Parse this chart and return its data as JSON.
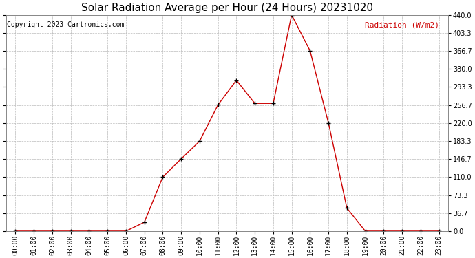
{
  "title": "Solar Radiation Average per Hour (24 Hours) 20231020",
  "copyright_text": "Copyright 2023 Cartronics.com",
  "ylabel": "Radiation (W/m2)",
  "hours": [
    0,
    1,
    2,
    3,
    4,
    5,
    6,
    7,
    8,
    9,
    10,
    11,
    12,
    13,
    14,
    15,
    16,
    17,
    18,
    19,
    20,
    21,
    22,
    23
  ],
  "values": [
    0,
    0,
    0,
    0,
    0,
    0,
    0,
    18,
    110,
    147,
    183,
    257,
    307,
    260,
    260,
    440,
    367,
    220,
    47,
    0,
    0,
    0,
    0,
    0
  ],
  "line_color": "#cc0000",
  "marker_color": "#000000",
  "grid_color": "#bbbbbb",
  "background_color": "#ffffff",
  "title_fontsize": 11,
  "copyright_fontsize": 7,
  "label_fontsize": 8,
  "tick_fontsize": 7,
  "ylim": [
    0,
    440
  ],
  "yticks": [
    0.0,
    36.7,
    73.3,
    110.0,
    146.7,
    183.3,
    220.0,
    256.7,
    293.3,
    330.0,
    366.7,
    403.3,
    440.0
  ],
  "ytick_labels": [
    "0.0",
    "36.7",
    "73.3",
    "110.0",
    "146.7",
    "183.3",
    "220.0",
    "256.7",
    "293.3",
    "330.0",
    "366.7",
    "403.3",
    "440.0"
  ],
  "copyright_color": "#000000",
  "ylabel_color": "#cc0000"
}
